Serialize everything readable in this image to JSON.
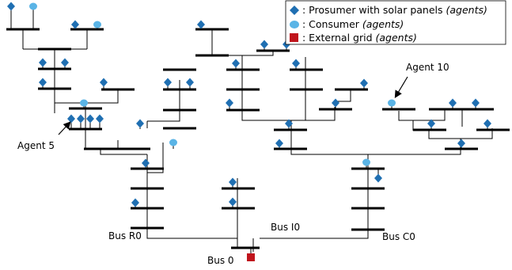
{
  "colors": {
    "prosumer": "#1f6fb2",
    "consumer": "#5ab4e6",
    "grid": "#c0141c",
    "bus": "#000000",
    "line": "#000000"
  },
  "legend": {
    "items": [
      {
        "shape": "diamond",
        "color_key": "prosumer",
        "text": ": Prosumer with solar panels ",
        "italic": "(agents)"
      },
      {
        "shape": "circle",
        "color_key": "consumer",
        "text": ": Consumer ",
        "italic": "(agents)"
      },
      {
        "shape": "square",
        "color_key": "grid",
        "text": ": External grid ",
        "italic": "(agents)"
      }
    ]
  },
  "labels": {
    "agent5": "Agent 5",
    "agent10": "Agent 10",
    "bus_r0": "Bus R0",
    "bus_i0": "Bus I0",
    "bus_c0": "Bus C0",
    "bus_0": "Bus 0"
  }
}
